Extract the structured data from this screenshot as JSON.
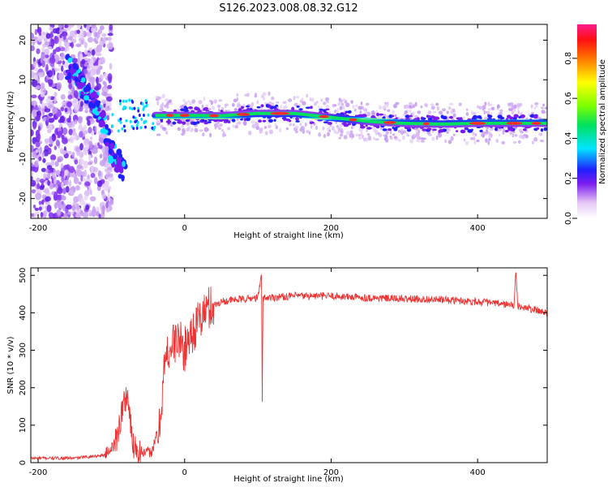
{
  "title": "S126.2023.008.08.32.G12",
  "chart_data": [
    {
      "type": "heatmap",
      "xlabel": "Height of straight line (km)",
      "ylabel": "Frequency (Hz)",
      "xlim": [
        -210,
        495
      ],
      "ylim": [
        -25,
        24
      ],
      "xticks": [
        -200,
        0,
        200,
        400
      ],
      "yticks": [
        -20,
        -10,
        0,
        10,
        20
      ],
      "colorbar": {
        "label": "Normalized spectral amplitude",
        "range": [
          0,
          0.97
        ],
        "ticks": [
          0.0,
          0.2,
          0.4,
          0.6,
          0.8
        ],
        "tick_labels": [
          "0.0",
          "0.2",
          "0.4",
          "0.6",
          "0.8"
        ],
        "colormap": "white-purple-blue-cyan-green-yellow-red-magenta"
      },
      "main_ridge": {
        "x": [
          -40,
          0,
          50,
          100,
          150,
          200,
          250,
          300,
          350,
          400,
          450,
          495
        ],
        "frequency": [
          1.0,
          1.0,
          0.9,
          1.5,
          1.5,
          0.5,
          -0.5,
          -1.0,
          -1.2,
          -1.0,
          -1.0,
          -1.0
        ]
      },
      "early_branch": {
        "x": [
          -160,
          -145,
          -130,
          -115,
          -100,
          -90,
          -80
        ],
        "frequency": [
          13,
          10,
          6,
          2,
          -8,
          -11,
          -13
        ]
      }
    },
    {
      "type": "line",
      "xlabel": "Height of straight line (km)",
      "ylabel": "SNR (10 * v/v)",
      "xlim": [
        -210,
        495
      ],
      "ylim": [
        0,
        520
      ],
      "xticks": [
        -200,
        0,
        200,
        400
      ],
      "yticks": [
        0,
        100,
        200,
        300,
        400,
        500
      ],
      "color": "#ee3333",
      "series": [
        {
          "x": [
            -210,
            -150,
            -110,
            -95,
            -85,
            -78,
            -72,
            -65,
            -55,
            -45,
            -35,
            -28,
            -22,
            -15,
            -8,
            0,
            5,
            10,
            15,
            20,
            25,
            30,
            40,
            50,
            70,
            100,
            105,
            106,
            107,
            110,
            150,
            200,
            250,
            300,
            350,
            400,
            450,
            452,
            455,
            495
          ],
          "y": [
            12,
            12,
            20,
            50,
            140,
            190,
            60,
            40,
            25,
            30,
            80,
            250,
            300,
            320,
            330,
            300,
            330,
            350,
            360,
            380,
            395,
            410,
            420,
            430,
            435,
            440,
            500,
            160,
            440,
            440,
            445,
            445,
            440,
            437,
            435,
            430,
            420,
            510,
            418,
            400
          ]
        }
      ]
    }
  ]
}
